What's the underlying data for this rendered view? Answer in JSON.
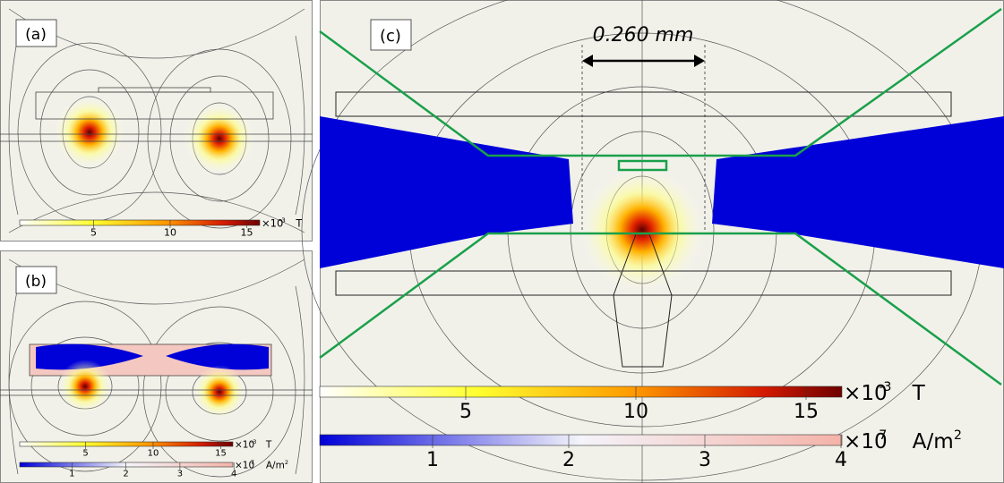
{
  "panels": [
    {
      "label": "(a)",
      "colorbars": [
        {
          "ticks": [
            5,
            10,
            15
          ],
          "multiplier": "×10",
          "exponent": "-3",
          "unit": "T"
        }
      ]
    },
    {
      "label": "(b)",
      "colorbars": [
        {
          "ticks": [
            5,
            10,
            15
          ],
          "multiplier": "×10",
          "exponent": "-3",
          "unit": "T"
        },
        {
          "ticks": [
            1,
            2,
            3,
            4
          ],
          "multiplier": "×10",
          "exponent": "7",
          "unit": "A/m",
          "unit_exponent": "2"
        }
      ]
    },
    {
      "label": "(c)",
      "dimension": "0.260 mm",
      "colorbars": [
        {
          "ticks": [
            5,
            10,
            15
          ],
          "multiplier": "×10",
          "exponent": "-3",
          "unit": "T"
        },
        {
          "ticks": [
            1,
            2,
            3,
            4
          ],
          "multiplier": "×10",
          "exponent": "7",
          "unit": "A/m",
          "unit_exponent": "2"
        }
      ]
    }
  ]
}
